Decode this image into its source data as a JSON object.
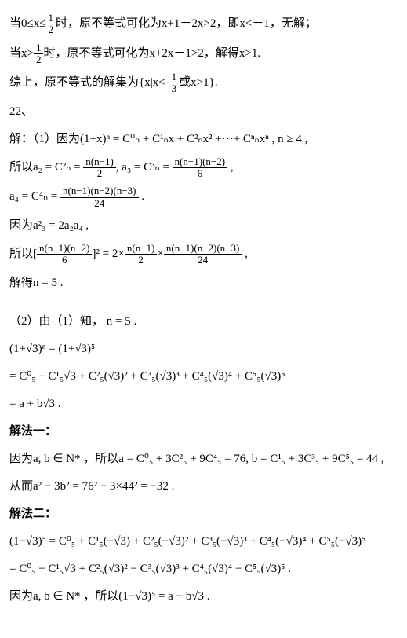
{
  "l1a": "当0≤x≤",
  "l1b": "时，原不等式可化为x+1－2x>2，即x<－1，无解；",
  "f1n": "1",
  "f1d": "2",
  "l2a": "当x>",
  "l2b": "时，原不等式可化为x+2x－1>2，解得x>1.",
  "f2n": "1",
  "f2d": "2",
  "l3a": "综上，原不等式的解集为{x|x<-",
  "l3b": "或x>1}.",
  "f3n": "1",
  "f3d": "3",
  "p22": "22、",
  "l4": "解：（1）因为(1+x)ⁿ = C⁰ₙ + C¹ₙx + C²ₙx² +···+ Cⁿₙxⁿ , n ≥ 4 ,",
  "l5a": "所以a₂ = C²ₙ = ",
  "l5b": ", a₃ = C³ₙ = ",
  "l5c": " ,",
  "f5n": "n(n−1)",
  "f5d": "2",
  "f6n": "n(n−1)(n−2)",
  "f6d": "6",
  "l6a": "a₄ = C⁴ₙ = ",
  "l6b": " .",
  "f7n": "n(n−1)(n−2)(n−3)",
  "f7d": "24",
  "l7": "因为a²₃ = 2a₂a₄ ,",
  "l8a": "所以[",
  "l8b": "]² = 2×",
  "l8c": "×",
  "l8d": " ,",
  "f8n": "n(n−1)(n−2)",
  "f8d": "6",
  "f9n": "n(n−1)",
  "f9d": "2",
  "f10n": "n(n−1)(n−2)(n−3)",
  "f10d": "24",
  "l9": "解得n = 5 .",
  "l10": "（2）由（1）知， n = 5 .",
  "l11": "(1+√3)ⁿ = (1+√3)⁵",
  "l12": "= C⁰₅ + C¹₅√3 + C²₅(√3)² + C³₅(√3)³ + C⁴₅(√3)⁴ + C⁵₅(√3)⁵",
  "l13": "= a + b√3 .",
  "h1": "解法一：",
  "l14": "因为a, b ∈ N* ，所以a = C⁰₅ + 3C²₅ + 9C⁴₅ = 76, b = C¹₅ + 3C³₅ + 9C⁵₅ = 44 ,",
  "l15": "从而a² − 3b² = 76² − 3×44² = −32 .",
  "h2": "解法二：",
  "l16": "(1−√3)⁵ = C⁰₅ + C¹₅(−√3) + C²₅(−√3)² + C³₅(−√3)³ + C⁴₅(−√3)⁴ + C⁵₅(−√3)⁵",
  "l17": "= C⁰₅ − C¹₅√3 + C²₅(√3)² − C³₅(√3)³ + C⁴₅(√3)⁴ − C⁵₅(√3)⁵ .",
  "l18": "因为a, b ∈ N* ，所以(1−√3)⁵ = a − b√3 ."
}
